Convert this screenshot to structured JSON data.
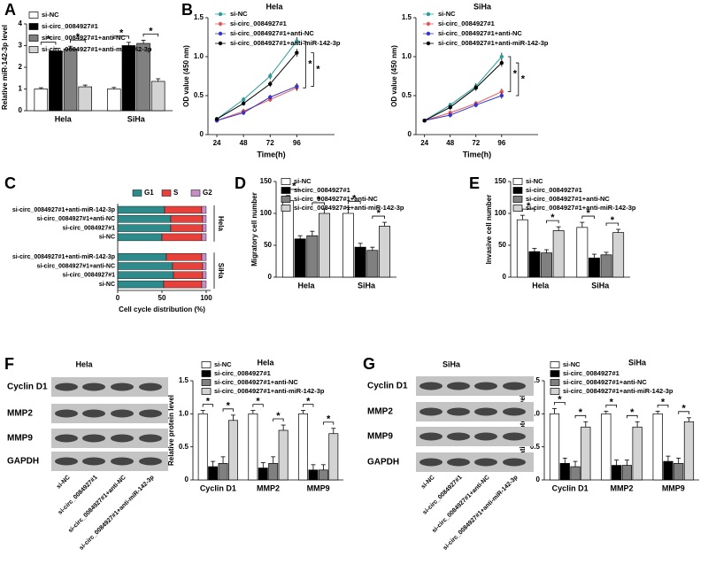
{
  "chart_data": [
    {
      "panel": "A",
      "type": "bar",
      "ylabel": "Relative miR-142-3p level",
      "categories": [
        "Hela",
        "SiHa"
      ],
      "series": [
        {
          "name": "si-NC",
          "color": "#ffffff",
          "values": [
            1.0,
            1.0
          ],
          "errors": [
            0.06,
            0.07
          ]
        },
        {
          "name": "si-circ_0084927#1",
          "color": "#000000",
          "values": [
            2.75,
            3.0
          ],
          "errors": [
            0.12,
            0.15
          ]
        },
        {
          "name": "si-circ_0084927#1+anti-NC",
          "color": "#808080",
          "values": [
            2.85,
            3.1
          ],
          "errors": [
            0.12,
            0.15
          ]
        },
        {
          "name": "si-circ_0084927#1+anti-miR-142-3p",
          "color": "#d3d3d3",
          "values": [
            1.1,
            1.35
          ],
          "errors": [
            0.08,
            0.12
          ]
        }
      ],
      "ylim": [
        0,
        4
      ],
      "yticks": [
        0,
        1,
        2,
        3,
        4
      ],
      "significance": "*"
    },
    {
      "panel": "B",
      "type": "line",
      "title": "Hela",
      "xlabel": "Time(h)",
      "ylabel": "OD value (450 nm)",
      "x": [
        24,
        48,
        72,
        96
      ],
      "xlim": [
        16,
        130
      ],
      "xticks": [
        24,
        48,
        72,
        96
      ],
      "ylim": [
        0,
        1.5
      ],
      "yticks": [
        0,
        0.5,
        {
          "value": 1,
          "label": "1.0"
        },
        1.5
      ],
      "series": [
        {
          "name": "si-NC",
          "color": "#2a9d9d",
          "values": [
            0.2,
            0.45,
            0.75,
            1.2
          ],
          "errors": [
            0.02,
            0.03,
            0.04,
            0.05
          ]
        },
        {
          "name": "si-circ_0084927#1",
          "color": "#e8575a",
          "values": [
            0.18,
            0.3,
            0.45,
            0.6
          ],
          "errors": [
            0.02,
            0.03,
            0.03,
            0.04
          ]
        },
        {
          "name": "si-circ_0084927#1+anti-NC",
          "color": "#3535c8",
          "values": [
            0.18,
            0.28,
            0.48,
            0.62
          ],
          "errors": [
            0.02,
            0.03,
            0.03,
            0.04
          ]
        },
        {
          "name": "si-circ_0084927#1+anti-miR-142-3p",
          "color": "#000000",
          "values": [
            0.2,
            0.4,
            0.65,
            1.05
          ],
          "errors": [
            0.02,
            0.03,
            0.04,
            0.05
          ]
        }
      ],
      "significance": "*"
    },
    {
      "type": "line",
      "title": "SiHa",
      "xlabel": "Time(h)",
      "ylabel": "OD value (450 nm)",
      "x": [
        24,
        48,
        72,
        96
      ],
      "xlim": [
        16,
        130
      ],
      "xticks": [
        24,
        48,
        72,
        96
      ],
      "ylim": [
        0,
        1.5
      ],
      "yticks": [
        0,
        0.5,
        {
          "value": 1,
          "label": "1.0"
        },
        1.5
      ],
      "series": [
        {
          "name": "si-NC",
          "color": "#2a9d9d",
          "values": [
            0.18,
            0.38,
            0.62,
            1.0
          ],
          "errors": [
            0.02,
            0.03,
            0.04,
            0.05
          ]
        },
        {
          "name": "si-circ_0084927#1",
          "color": "#e8575a",
          "values": [
            0.18,
            0.28,
            0.4,
            0.55
          ],
          "errors": [
            0.02,
            0.03,
            0.03,
            0.04
          ]
        },
        {
          "name": "si-circ_0084927#1+anti-NC",
          "color": "#3535c8",
          "values": [
            0.18,
            0.25,
            0.38,
            0.5
          ],
          "errors": [
            0.02,
            0.03,
            0.03,
            0.04
          ]
        },
        {
          "name": "si-circ_0084927#1+anti-miR-142-3p",
          "color": "#000000",
          "values": [
            0.18,
            0.35,
            0.6,
            0.92
          ],
          "errors": [
            0.02,
            0.03,
            0.04,
            0.05
          ]
        }
      ],
      "significance": "*"
    },
    {
      "panel": "C",
      "type": "stacked_barh",
      "xlabel": "Cell cycle distribution (%)",
      "categories": [
        "si-circ_0084927#1+anti-miR-142-3p",
        "si-circ_0084927#1+anti-NC",
        "si-circ_0084927#1",
        "si-NC",
        "si-circ_0084927#1+anti-miR-142-3p",
        "si-circ_0084927#1+anti-NC",
        "si-circ_0084927#1",
        "si-NC"
      ],
      "group_labels": [
        "Hela",
        "SiHa"
      ],
      "series": [
        {
          "name": "G1",
          "color": "#2e8b8b",
          "values": [
            53,
            60,
            60,
            50,
            55,
            62,
            63,
            52
          ]
        },
        {
          "name": "S",
          "color": "#e8413c",
          "values": [
            42,
            36,
            36,
            45,
            40,
            34,
            33,
            43
          ]
        },
        {
          "name": "G2",
          "color": "#c58fc5",
          "values": [
            5,
            4,
            4,
            5,
            5,
            4,
            4,
            5
          ]
        }
      ],
      "xlim": [
        0,
        100
      ],
      "xticks": [
        0,
        50,
        100
      ]
    },
    {
      "panel": "D",
      "type": "bar",
      "ylabel": "Migratory cell number",
      "categories": [
        "Hela",
        "SiHa"
      ],
      "series": [
        {
          "name": "si-NC",
          "color": "#ffffff",
          "values": [
            120,
            100
          ],
          "errors": [
            8,
            9
          ]
        },
        {
          "name": "si-circ_0084927#1",
          "color": "#000000",
          "values": [
            60,
            47
          ],
          "errors": [
            5,
            6
          ]
        },
        {
          "name": "si-circ_0084927#1+anti-NC",
          "color": "#808080",
          "values": [
            65,
            42
          ],
          "errors": [
            7,
            5
          ]
        },
        {
          "name": "si-circ_0084927#1+anti-miR-142-3p",
          "color": "#d3d3d3",
          "values": [
            100,
            80
          ],
          "errors": [
            7,
            6
          ]
        }
      ],
      "ylim": [
        0,
        150
      ],
      "yticks": [
        0,
        50,
        100,
        150
      ],
      "significance": "*"
    },
    {
      "panel": "E",
      "type": "bar",
      "ylabel": "Invasive cell number",
      "categories": [
        "Hela",
        "SiHa"
      ],
      "series": [
        {
          "name": "si-NC",
          "color": "#ffffff",
          "values": [
            90,
            78
          ],
          "errors": [
            7,
            8
          ]
        },
        {
          "name": "si-circ_0084927#1",
          "color": "#000000",
          "values": [
            40,
            30
          ],
          "errors": [
            5,
            6
          ]
        },
        {
          "name": "si-circ_0084927#1+anti-NC",
          "color": "#808080",
          "values": [
            38,
            35
          ],
          "errors": [
            5,
            4
          ]
        },
        {
          "name": "si-circ_0084927#1+anti-miR-142-3p",
          "color": "#d3d3d3",
          "values": [
            73,
            70
          ],
          "errors": [
            6,
            5
          ]
        }
      ],
      "ylim": [
        0,
        150
      ],
      "yticks": [
        0,
        50,
        100,
        150
      ],
      "significance": "*"
    },
    {
      "panel": "F",
      "type": "bar",
      "title": "Hela",
      "ylabel": "Relative protein level",
      "categories": [
        "Cyclin D1",
        "MMP2",
        "MMP9"
      ],
      "series": [
        {
          "name": "si-NC",
          "color": "#ffffff",
          "values": [
            1.0,
            1.0,
            1.0
          ],
          "errors": [
            0.05,
            0.05,
            0.05
          ]
        },
        {
          "name": "si-circ_0084927#1",
          "color": "#000000",
          "values": [
            0.2,
            0.18,
            0.15
          ],
          "errors": [
            0.08,
            0.08,
            0.08
          ]
        },
        {
          "name": "si-circ_0084927#1+anti-NC",
          "color": "#808080",
          "values": [
            0.25,
            0.25,
            0.15
          ],
          "errors": [
            0.1,
            0.1,
            0.08
          ]
        },
        {
          "name": "si-circ_0084927#1+anti-miR-142-3p",
          "color": "#d3d3d3",
          "values": [
            0.9,
            0.75,
            0.7
          ],
          "errors": [
            0.08,
            0.08,
            0.08
          ]
        }
      ],
      "ylim": [
        0,
        1.5
      ],
      "yticks": [
        0,
        0.5,
        {
          "value": 1,
          "label": "1.0"
        },
        1.5
      ],
      "significance": "*"
    },
    {
      "panel": "G",
      "type": "bar",
      "title": "SiHa",
      "ylabel": "Relative protein level",
      "categories": [
        "Cyclin D1",
        "MMP2",
        "MMP9"
      ],
      "series": [
        {
          "name": "si-NC",
          "color": "#ffffff",
          "values": [
            1.0,
            1.0,
            1.0
          ],
          "errors": [
            0.08,
            0.04,
            0.04
          ]
        },
        {
          "name": "si-circ_0084927#1",
          "color": "#000000",
          "values": [
            0.25,
            0.22,
            0.28
          ],
          "errors": [
            0.08,
            0.08,
            0.08
          ]
        },
        {
          "name": "si-circ_0084927#1+anti-NC",
          "color": "#808080",
          "values": [
            0.2,
            0.22,
            0.25
          ],
          "errors": [
            0.08,
            0.08,
            0.08
          ]
        },
        {
          "name": "si-circ_0084927#1+anti-miR-142-3p",
          "color": "#d3d3d3",
          "values": [
            0.8,
            0.8,
            0.88
          ],
          "errors": [
            0.08,
            0.08,
            0.06
          ]
        }
      ],
      "ylim": [
        0,
        1.5
      ],
      "yticks": [
        0,
        0.5,
        {
          "value": 1,
          "label": "1.0"
        },
        1.5
      ],
      "significance": "*"
    }
  ],
  "blots": [
    {
      "title": "Hela",
      "proteins": [
        "Cyclin D1",
        "MMP2",
        "MMP9",
        "GAPDH"
      ],
      "lanes": [
        "si-NC",
        "si-circ_0084927#1",
        "si-circ_0084927#1+anti-NC",
        "si-circ_0084927#1+anti-miR-142-3p"
      ]
    },
    {
      "title": "SiHa",
      "proteins": [
        "Cyclin D1",
        "MMP2",
        "MMP9",
        "GAPDH"
      ],
      "lanes": [
        "si-NC",
        "si-circ_0084927#1",
        "si-circ_0084927#1+anti-NC",
        "si-circ_0084927#1+anti-miR-142-3p"
      ]
    }
  ]
}
